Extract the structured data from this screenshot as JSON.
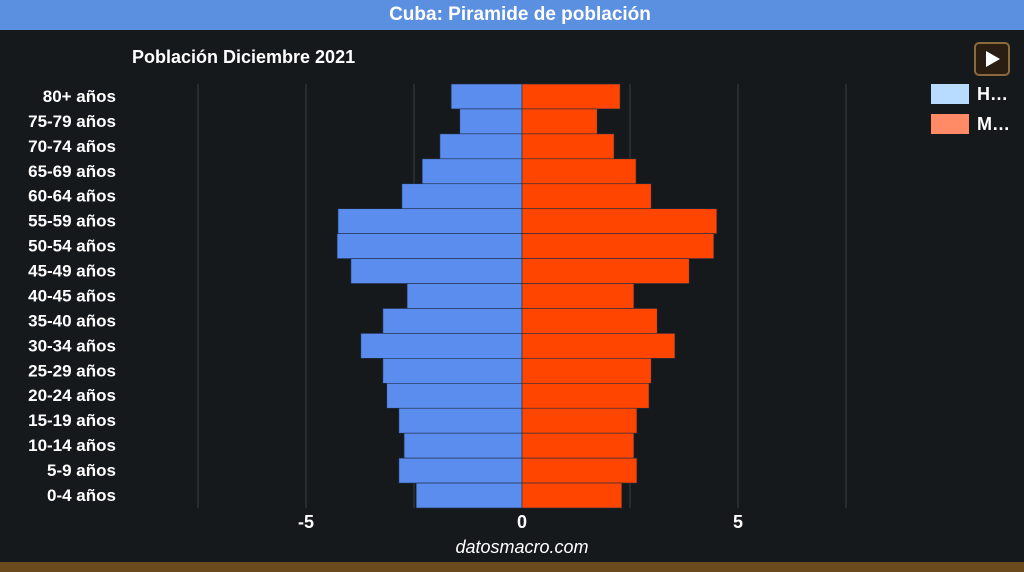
{
  "chart_data": {
    "type": "pyramid",
    "title": "Cuba: Piramide de población",
    "subtitle": "Población Diciembre 2021",
    "source": "datosmacro.com",
    "categories": [
      "80+ años",
      "75-79 años",
      "70-74 años",
      "65-69 años",
      "60-64 años",
      "55-59 años",
      "50-54 años",
      "45-49 años",
      "40-45 años",
      "35-40 años",
      "30-34 años",
      "25-29 años",
      "20-24 años",
      "15-19 años",
      "10-14 años",
      "5-9 años",
      "0-4 años"
    ],
    "series": [
      {
        "name": "H…",
        "color": "#5b8def",
        "legend_color": "#b8dcff",
        "values": [
          -1.64,
          -1.44,
          -1.9,
          -2.31,
          -2.78,
          -4.26,
          -4.28,
          -3.96,
          -2.66,
          -3.22,
          -3.73,
          -3.22,
          -3.13,
          -2.85,
          -2.73,
          -2.85,
          -2.45
        ]
      },
      {
        "name": "M…",
        "color": "#ff4500",
        "legend_color": "#ff8a65",
        "values": [
          2.27,
          1.74,
          2.13,
          2.64,
          2.99,
          4.51,
          4.44,
          3.87,
          2.59,
          3.13,
          3.54,
          2.99,
          2.94,
          2.66,
          2.59,
          2.66,
          2.31
        ]
      }
    ],
    "xlim": [
      -7.5,
      7.5
    ],
    "xticks": [
      -5,
      0,
      5
    ],
    "minor_xticks": [
      -7.5,
      -2.5,
      2.5,
      7.5
    ],
    "grid": true,
    "legend_position": "top-right"
  }
}
